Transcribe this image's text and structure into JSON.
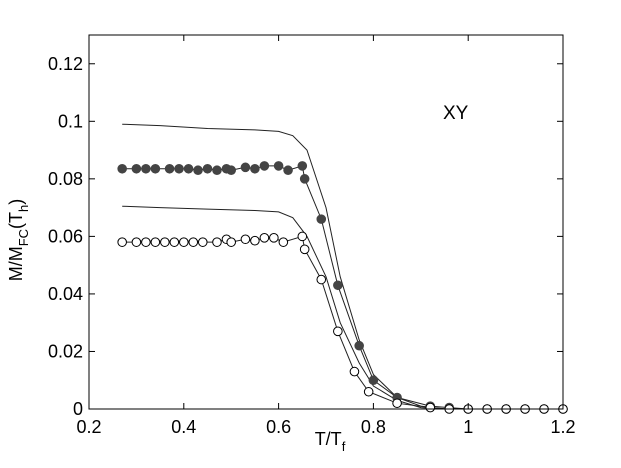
{
  "chart_data": {
    "type": "line",
    "title": "",
    "xlabel": "T/T",
    "xlabel_sub": "f",
    "ylabel": "M/M",
    "ylabel_sub": "FC",
    "ylabel_paren_open": "(T",
    "ylabel_sub2": "h",
    "ylabel_paren_close": ")",
    "annotation": "XY",
    "xlim": [
      0.2,
      1.2
    ],
    "ylim": [
      0,
      0.13
    ],
    "xticks": [
      0.2,
      0.4,
      0.6,
      0.8,
      1,
      1.2
    ],
    "xtick_labels": [
      "0.2",
      "0.4",
      "0.6",
      "0.8",
      "1",
      "1.2"
    ],
    "yticks": [
      0,
      0.02,
      0.04,
      0.06,
      0.08,
      0.1,
      0.12
    ],
    "ytick_labels": [
      "0",
      "0.02",
      "0.04",
      "0.06",
      "0.08",
      "0.1",
      "0.12"
    ],
    "grid": false,
    "series": [
      {
        "style": "line",
        "color": "#000000",
        "x": [
          0.27,
          0.35,
          0.45,
          0.55,
          0.6,
          0.63,
          0.66,
          0.7,
          0.73,
          0.77,
          0.8,
          0.85,
          0.9,
          0.95,
          1.0,
          1.1,
          1.2
        ],
        "y": [
          0.099,
          0.0985,
          0.0975,
          0.097,
          0.0965,
          0.095,
          0.09,
          0.07,
          0.046,
          0.024,
          0.012,
          0.004,
          0.001,
          0.0,
          0.0,
          0.0,
          0.0
        ]
      },
      {
        "style": "line",
        "color": "#000000",
        "x": [
          0.27,
          0.35,
          0.45,
          0.55,
          0.6,
          0.63,
          0.66,
          0.7,
          0.73,
          0.77,
          0.8,
          0.85,
          0.9,
          0.95,
          1.0,
          1.1,
          1.2
        ],
        "y": [
          0.0705,
          0.07,
          0.0695,
          0.069,
          0.0685,
          0.0665,
          0.06,
          0.046,
          0.03,
          0.016,
          0.008,
          0.003,
          0.0005,
          0.0,
          0.0,
          0.0,
          0.0
        ]
      },
      {
        "style": "line-marker",
        "marker": "filled-circle",
        "color": "#444444",
        "x": [
          0.27,
          0.3,
          0.32,
          0.34,
          0.37,
          0.39,
          0.41,
          0.43,
          0.45,
          0.47,
          0.49,
          0.5,
          0.53,
          0.55,
          0.57,
          0.6,
          0.62,
          0.65,
          0.655,
          0.69,
          0.725,
          0.77,
          0.8,
          0.85,
          0.92,
          0.96,
          1.0,
          1.04,
          1.08,
          1.12,
          1.16,
          1.2
        ],
        "y": [
          0.0835,
          0.0835,
          0.0835,
          0.0835,
          0.0835,
          0.0835,
          0.0835,
          0.083,
          0.0835,
          0.083,
          0.0835,
          0.083,
          0.084,
          0.0835,
          0.0845,
          0.0845,
          0.083,
          0.0845,
          0.08,
          0.066,
          0.043,
          0.022,
          0.01,
          0.004,
          0.001,
          0.0005,
          0.0,
          0.0,
          0.0,
          0.0,
          0.0,
          0.0
        ]
      },
      {
        "style": "line-marker",
        "marker": "open-circle",
        "color": "#000000",
        "x": [
          0.27,
          0.3,
          0.32,
          0.34,
          0.36,
          0.38,
          0.4,
          0.42,
          0.44,
          0.47,
          0.49,
          0.5,
          0.53,
          0.55,
          0.57,
          0.59,
          0.61,
          0.65,
          0.655,
          0.69,
          0.725,
          0.76,
          0.79,
          0.85,
          0.92,
          0.96,
          1.0,
          1.04,
          1.08,
          1.12,
          1.16,
          1.2
        ],
        "y": [
          0.058,
          0.058,
          0.058,
          0.058,
          0.058,
          0.058,
          0.058,
          0.058,
          0.058,
          0.058,
          0.059,
          0.058,
          0.059,
          0.0585,
          0.0595,
          0.0595,
          0.058,
          0.06,
          0.0555,
          0.045,
          0.027,
          0.013,
          0.006,
          0.002,
          0.0005,
          0.0,
          0.0,
          0.0,
          0.0,
          0.0,
          0.0,
          0.0
        ]
      }
    ]
  }
}
